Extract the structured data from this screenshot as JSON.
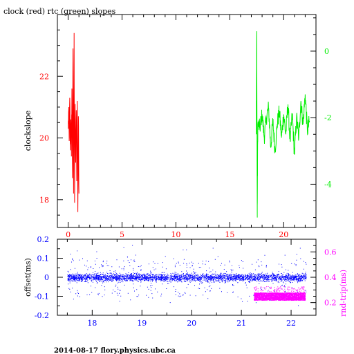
{
  "title": "clock (red) rtc (green) slopes",
  "footer": "2014-08-17 flory.physics.ubc.ca",
  "colors": {
    "axes": "#000000",
    "clock": "#ff0000",
    "rtc": "#00ee00",
    "offset": "#0000ff",
    "rndtrip": "#ff00ff"
  },
  "chart_data": [
    {
      "type": "line",
      "title": "clock (red) rtc (green) slopes",
      "xlabel": "",
      "ylabel": "clockslope",
      "xlim": [
        -1,
        23
      ],
      "xticks": [
        0,
        5,
        10,
        15,
        20
      ],
      "xtick_labels": [
        "0",
        "5",
        "10",
        "15",
        "20"
      ],
      "left_axis": {
        "ylim": [
          17.1,
          24.0
        ],
        "ticks": [
          18,
          20,
          22
        ],
        "tick_labels": [
          "18",
          "20",
          "22"
        ],
        "color": "#ff0000"
      },
      "right_axis": {
        "ylim": [
          -5.3,
          1.1
        ],
        "ticks": [
          -4,
          -2,
          0
        ],
        "tick_labels": [
          "-4",
          "-2",
          "0"
        ],
        "color": "#00ee00"
      },
      "grid": false,
      "series": [
        {
          "name": "clock",
          "axis": "left",
          "color": "#ff0000",
          "x_range": [
            0.0,
            1.0
          ],
          "points": [
            [
              0.0,
              20.3
            ],
            [
              0.05,
              20.9
            ],
            [
              0.1,
              19.9
            ],
            [
              0.15,
              21.3
            ],
            [
              0.2,
              19.6
            ],
            [
              0.25,
              20.6
            ],
            [
              0.3,
              19.4
            ],
            [
              0.35,
              21.6
            ],
            [
              0.4,
              18.7
            ],
            [
              0.45,
              22.9
            ],
            [
              0.5,
              18.2
            ],
            [
              0.55,
              23.4
            ],
            [
              0.6,
              17.9
            ],
            [
              0.65,
              21.1
            ],
            [
              0.7,
              19.2
            ],
            [
              0.75,
              20.9
            ],
            [
              0.8,
              18.6
            ],
            [
              0.85,
              21.2
            ],
            [
              0.9,
              17.6
            ],
            [
              0.95,
              20.7
            ],
            [
              1.0,
              18.2
            ]
          ]
        },
        {
          "name": "rtc",
          "axis": "right",
          "color": "#00ee00",
          "x_range": [
            17.5,
            22.4
          ],
          "points": [
            [
              17.45,
              -2.5
            ],
            [
              17.5,
              0.6
            ],
            [
              17.55,
              -5.0
            ],
            [
              17.6,
              -2.2
            ],
            [
              17.8,
              -2.3
            ],
            [
              18.0,
              -1.9
            ],
            [
              18.2,
              -2.6
            ],
            [
              18.4,
              -2.0
            ],
            [
              18.6,
              -1.7
            ],
            [
              18.8,
              -2.9
            ],
            [
              19.0,
              -2.1
            ],
            [
              19.2,
              -3.0
            ],
            [
              19.4,
              -2.2
            ],
            [
              19.6,
              -1.8
            ],
            [
              19.8,
              -2.6
            ],
            [
              20.0,
              -1.9
            ],
            [
              20.2,
              -2.5
            ],
            [
              20.4,
              -1.6
            ],
            [
              20.6,
              -2.7
            ],
            [
              20.8,
              -1.9
            ],
            [
              21.0,
              -3.1
            ],
            [
              21.2,
              -2.0
            ],
            [
              21.4,
              -2.6
            ],
            [
              21.6,
              -1.5
            ],
            [
              21.8,
              -2.2
            ],
            [
              22.0,
              -1.3
            ],
            [
              22.2,
              -2.4
            ],
            [
              22.4,
              -2.1
            ]
          ]
        }
      ]
    },
    {
      "type": "scatter",
      "xlabel": "",
      "ylabel": "offset(ms)",
      "xlim": [
        17.3,
        22.5
      ],
      "xticks": [
        18,
        19,
        20,
        21,
        22
      ],
      "xtick_labels": [
        "18",
        "19",
        "20",
        "21",
        "22"
      ],
      "left_axis": {
        "ylim": [
          -0.2,
          0.2
        ],
        "ticks": [
          -0.2,
          -0.1,
          0,
          0.1,
          0.2
        ],
        "tick_labels": [
          "-0.2",
          "-0.1",
          "0",
          "0.1",
          "0.2"
        ],
        "color": "#0000ff"
      },
      "right_axis": {
        "label": "rnd-trip(ms)",
        "ylim": [
          0.1,
          0.7
        ],
        "ticks": [
          0.2,
          0.4,
          0.6
        ],
        "tick_labels": [
          "0.2",
          "0.4",
          "0.6"
        ],
        "color": "#ff00ff"
      },
      "grid": false,
      "series": [
        {
          "name": "offset",
          "axis": "left",
          "color": "#0000ff",
          "x_range": [
            17.5,
            22.3
          ],
          "core_band": [
            -0.03,
            0.03
          ],
          "spread": 0.1,
          "outlier_range": [
            -0.15,
            0.18
          ]
        },
        {
          "name": "rnd-trip",
          "axis": "right",
          "color": "#ff00ff",
          "x_range": [
            21.25,
            22.28
          ],
          "band": [
            0.22,
            0.28
          ]
        }
      ]
    }
  ]
}
